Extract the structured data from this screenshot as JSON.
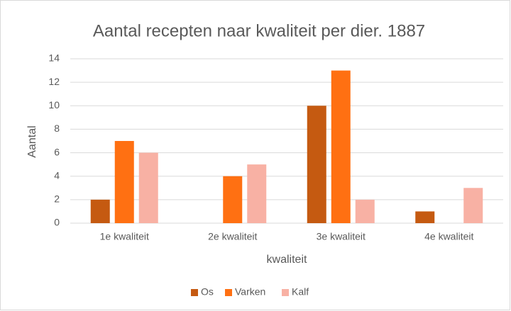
{
  "chart_data": {
    "type": "bar",
    "title": "Aantal recepten naar kwaliteit per dier. 1887",
    "xlabel": "kwaliteit",
    "ylabel": "Aantal",
    "categories": [
      "1e kwaliteit",
      "2e kwaliteit",
      "3e kwaliteit",
      "4e kwaliteit"
    ],
    "series": [
      {
        "name": "Os",
        "color": "#c55a11",
        "values": [
          2,
          0,
          10,
          1
        ]
      },
      {
        "name": "Varken",
        "color": "#ff7012",
        "values": [
          7,
          4,
          13,
          0
        ]
      },
      {
        "name": "Kalf",
        "color": "#f8b1a4",
        "values": [
          6,
          5,
          2,
          3
        ]
      }
    ],
    "ylim": [
      0,
      14
    ],
    "yticks": [
      0,
      2,
      4,
      6,
      8,
      10,
      12,
      14
    ],
    "grid": true,
    "legend": "bottom"
  }
}
